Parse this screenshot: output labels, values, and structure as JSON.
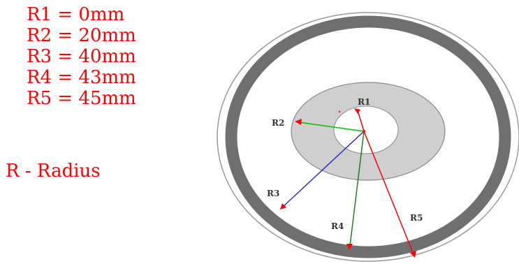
{
  "legend": {
    "lines": [
      "R1 = 0mm",
      "R2 = 20mm",
      "R3 = 40mm",
      "R4 = 43mm",
      "R5 = 45mm"
    ],
    "note": "R - Radius"
  },
  "diagram": {
    "labels": {
      "r1": "R1",
      "r2": "R2",
      "r3": "R3",
      "r4": "R4",
      "r5": "R5"
    },
    "colors": {
      "text": "#ff0000",
      "inner_ring": "#cfcfcf",
      "inner_ring_stroke": "#8a8a8a",
      "outer_band": "#6f6f6f",
      "outer_edge": "#9a9a9a",
      "r2_arrow": "#00c000",
      "r3_arrow": "#3030c0",
      "r4_arrow": "#208020",
      "r5_arrow": "#ff0000"
    }
  }
}
